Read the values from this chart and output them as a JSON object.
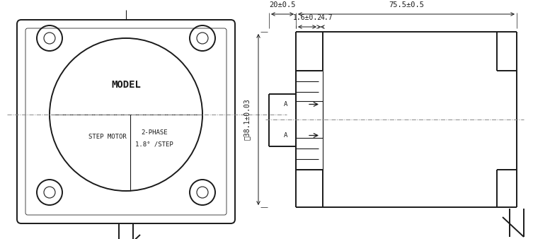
{
  "bg_color": "#ffffff",
  "line_color": "#1a1a1a",
  "dim_color": "#1a1a1a",
  "centerline_color": "#888888",
  "text_color": "#1a1a1a",
  "dim_label_20": "20±0.5",
  "dim_label_755": "75.5±0.5",
  "dim_label_16": "1.6±0.2",
  "dim_label_47": "4.7",
  "dim_dia_label": "΂38.1±0.03",
  "label_model": "MODEL",
  "label_step": "STEP MOTOR",
  "label_phase": "2-PHASE",
  "label_angle": "1.8° /STEP",
  "label_A_upper": "A",
  "label_A_lower": "A"
}
